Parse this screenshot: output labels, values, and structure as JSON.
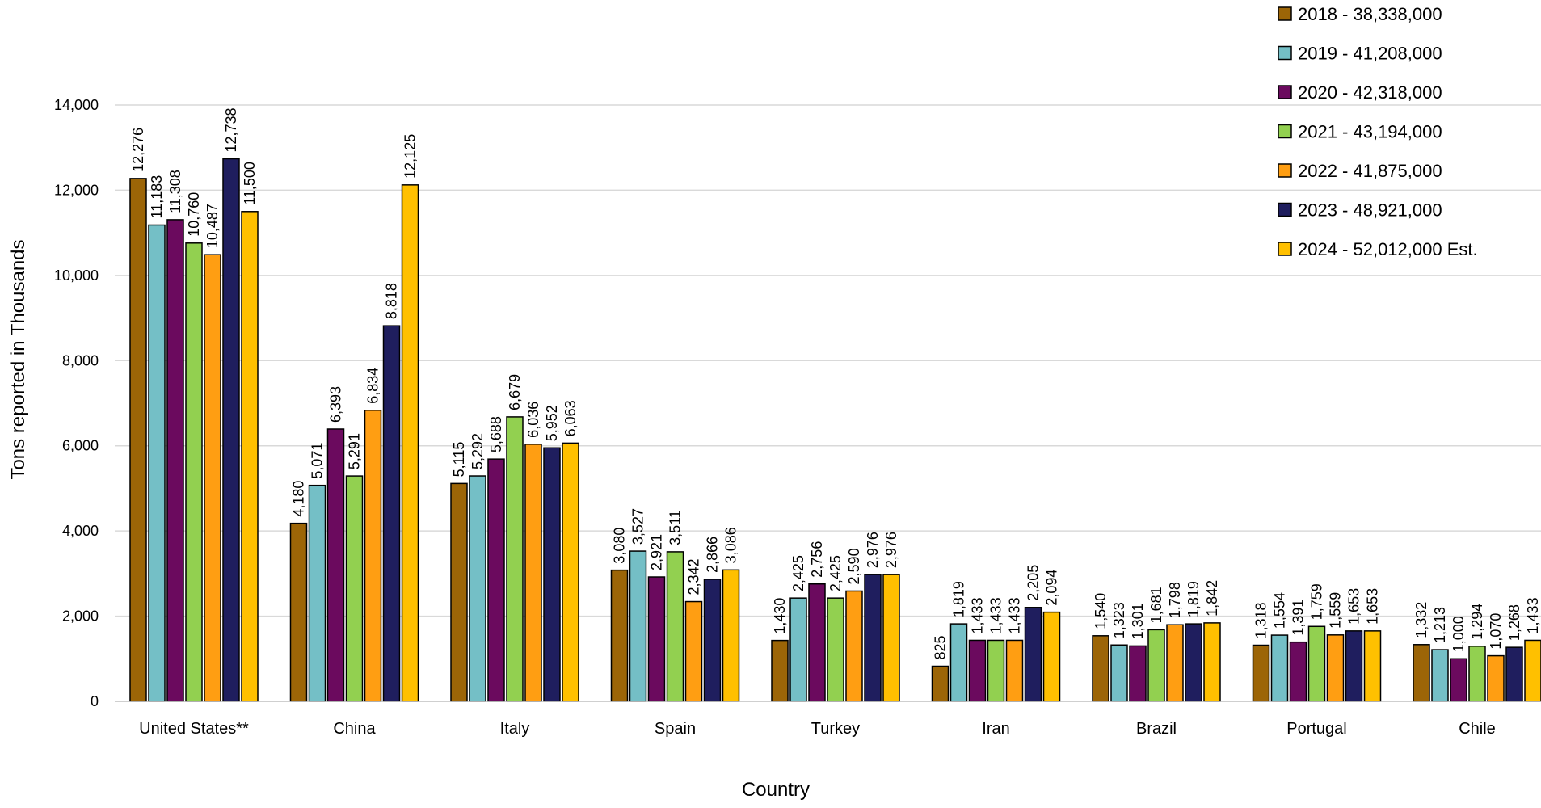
{
  "chart_data": {
    "type": "bar",
    "title": "",
    "xlabel": "Country",
    "ylabel": "Tons reported in Thousands",
    "ylim": [
      0,
      14000
    ],
    "yticks": [
      "0",
      "2,000",
      "4,000",
      "6,000",
      "8,000",
      "10,000",
      "12,000",
      "14,000"
    ],
    "grid": true,
    "legend_position": "top-right",
    "categories": [
      "United States**",
      "China",
      "Italy",
      "Spain",
      "Turkey",
      "Iran",
      "Brazil",
      "Portugal",
      "Chile"
    ],
    "series": [
      {
        "name": "2018 - 38,338,000",
        "color": "#9C6507",
        "values": [
          12276,
          4180,
          5115,
          3080,
          1430,
          825,
          1540,
          1318,
          1332
        ],
        "labels": [
          "12,276",
          "4,180",
          "5,115",
          "3,080",
          "1,430",
          "825",
          "1,540",
          "1,318",
          "1,332"
        ]
      },
      {
        "name": "2019 - 41,208,000",
        "color": "#74BFC6",
        "values": [
          11183,
          5071,
          5292,
          3527,
          2425,
          1819,
          1323,
          1554,
          1213
        ],
        "labels": [
          "11,183",
          "5,071",
          "5,292",
          "3,527",
          "2,425",
          "1,819",
          "1,323",
          "1,554",
          "1,213"
        ]
      },
      {
        "name": "2020 - 42,318,000",
        "color": "#6B0A5E",
        "values": [
          11308,
          6393,
          5688,
          2921,
          2756,
          1433,
          1301,
          1391,
          1000
        ],
        "labels": [
          "11,308",
          "6,393",
          "5,688",
          "2,921",
          "2,756",
          "1,433",
          "1,301",
          "1,391",
          "1,000"
        ]
      },
      {
        "name": "2021 - 43,194,000",
        "color": "#92D050",
        "values": [
          10760,
          5291,
          6679,
          3511,
          2425,
          1433,
          1681,
          1759,
          1294
        ],
        "labels": [
          "10,760",
          "5,291",
          "6,679",
          "3,511",
          "2,425",
          "1,433",
          "1,681",
          "1,759",
          "1,294"
        ]
      },
      {
        "name": "2022 - 41,875,000",
        "color": "#FF9E12",
        "values": [
          10487,
          6834,
          6036,
          2342,
          2590,
          1433,
          1798,
          1559,
          1070
        ],
        "labels": [
          "10,487",
          "6,834",
          "6,036",
          "2,342",
          "2,590",
          "1,433",
          "1,798",
          "1,559",
          "1,070"
        ]
      },
      {
        "name": "2023 - 48,921,000",
        "color": "#1F1E5E",
        "values": [
          12738,
          8818,
          5952,
          2866,
          2976,
          2205,
          1819,
          1653,
          1268
        ],
        "labels": [
          "12,738",
          "8,818",
          "5,952",
          "2,866",
          "2,976",
          "2,205",
          "1,819",
          "1,653",
          "1,268"
        ]
      },
      {
        "name": "2024 - 52,012,000 Est.",
        "color": "#FFC000",
        "values": [
          11500,
          12125,
          6063,
          3086,
          2976,
          2094,
          1842,
          1653,
          1433
        ],
        "labels": [
          "11,500",
          "12,125",
          "6,063",
          "3,086",
          "2,976",
          "2,094",
          "1,842",
          "1,653",
          "1,433"
        ]
      }
    ]
  }
}
